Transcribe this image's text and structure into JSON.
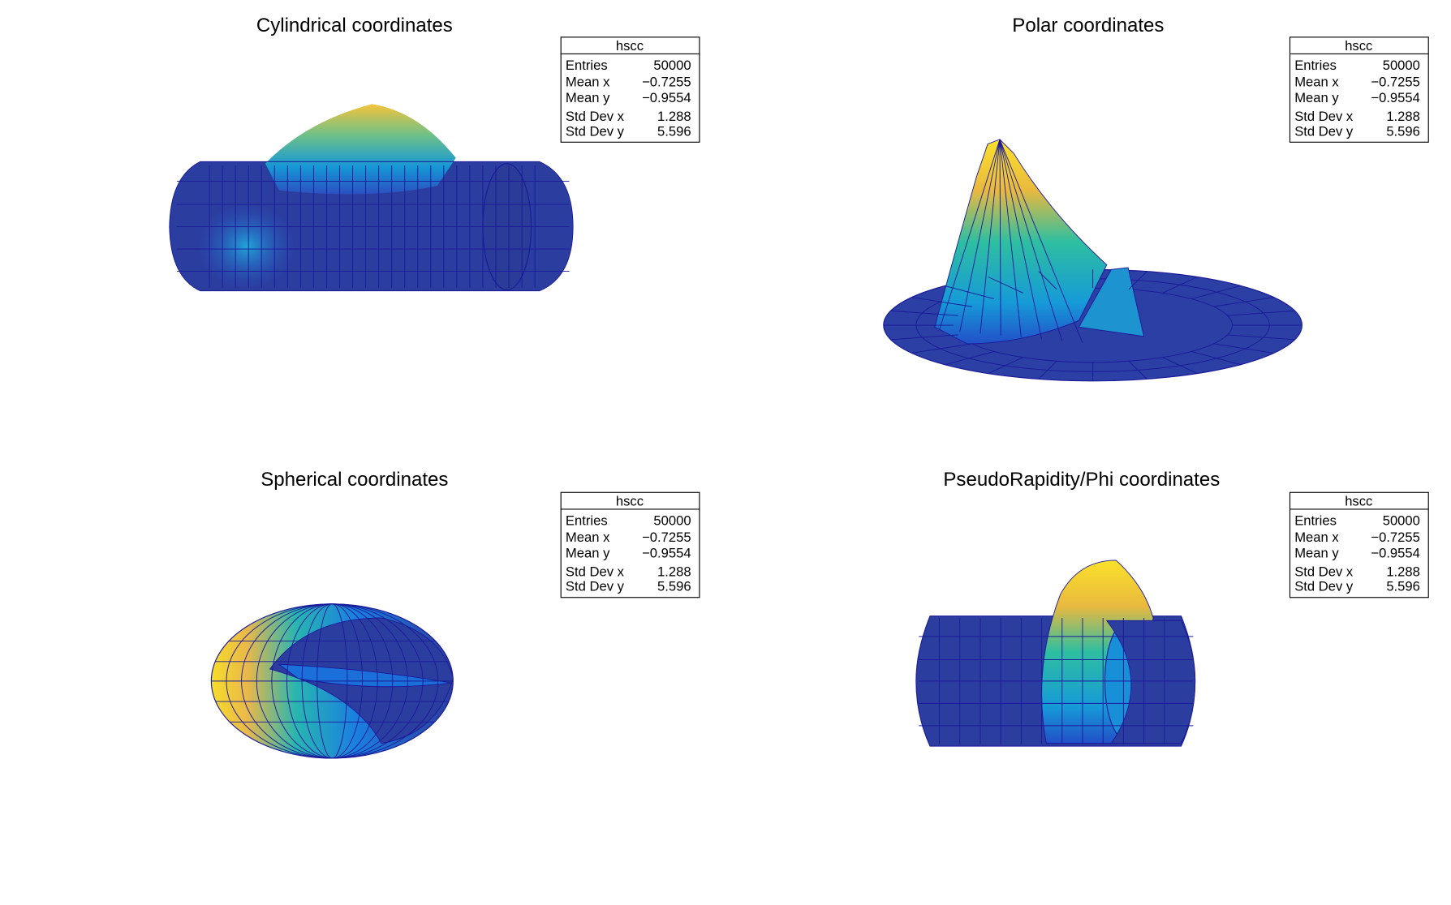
{
  "chart_data": [
    {
      "type": "surface",
      "title": "Cylindrical coordinates",
      "histogram": "hscc",
      "stats": {
        "Entries": "50000",
        "Mean x": "−0.7255",
        "Mean y": "−0.9554",
        "Std Dev x": "1.288",
        "Std Dev y": "5.596"
      }
    },
    {
      "type": "surface",
      "title": "Polar coordinates",
      "histogram": "hscc",
      "stats": {
        "Entries": "50000",
        "Mean x": "−0.7255",
        "Mean y": "−0.9554",
        "Std Dev x": "1.288",
        "Std Dev y": "5.596"
      }
    },
    {
      "type": "surface",
      "title": "Spherical coordinates",
      "histogram": "hscc",
      "stats": {
        "Entries": "50000",
        "Mean x": "−0.7255",
        "Mean y": "−0.9554",
        "Std Dev x": "1.288",
        "Std Dev y": "5.596"
      }
    },
    {
      "type": "surface",
      "title": "PseudoRapidity/Phi coordinates",
      "histogram": "hscc",
      "stats": {
        "Entries": "50000",
        "Mean x": "−0.7255",
        "Mean y": "−0.9554",
        "Std Dev x": "1.288",
        "Std Dev y": "5.596"
      }
    }
  ],
  "stat_labels": [
    "Entries",
    "Mean x",
    "Mean y",
    "Std Dev x",
    "Std Dev y"
  ],
  "colors": {
    "palette_low": "#2b3d9e",
    "palette_mid": "#13a6c2",
    "palette_high": "#f9e21e",
    "mesh": "#1a1a9a"
  }
}
